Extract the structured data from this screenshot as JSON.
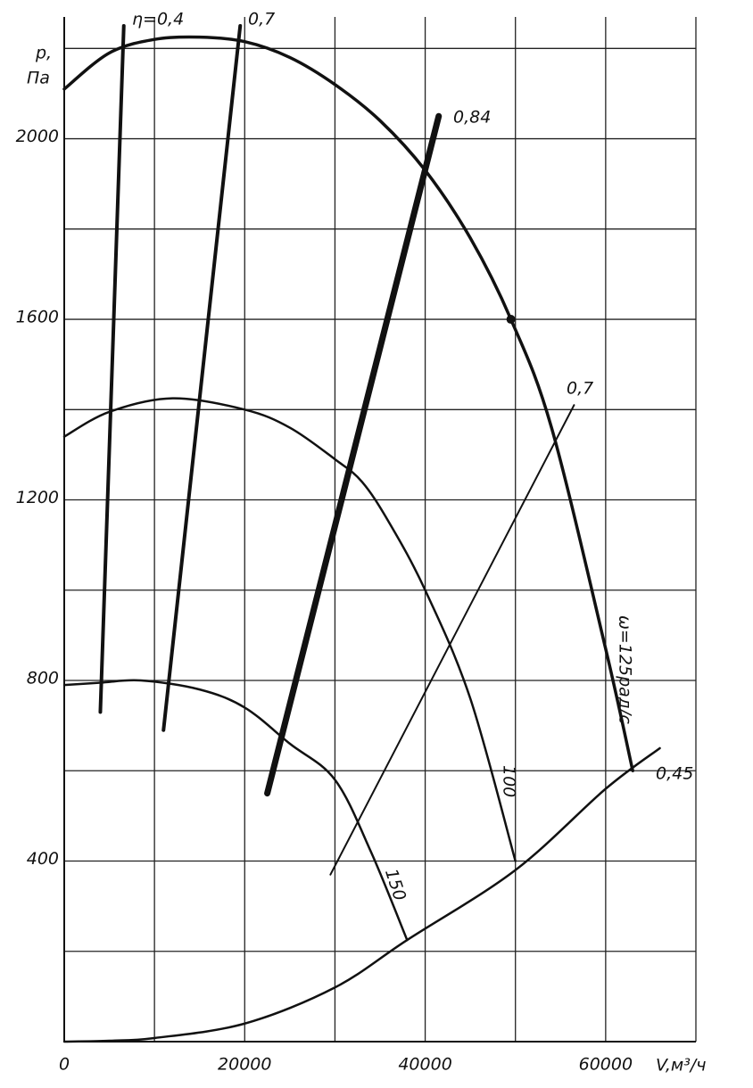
{
  "chart_data": {
    "type": "line",
    "y_label": [
      "p,",
      "Па"
    ],
    "x_label": "V,м³/ч",
    "xlim": [
      0,
      70000
    ],
    "ylim": [
      0,
      2250
    ],
    "xticks": [
      0,
      20000,
      40000,
      60000
    ],
    "minor_xticks": [
      10000,
      30000,
      50000,
      70000
    ],
    "yticks": [
      400,
      800,
      1200,
      1600,
      2000
    ],
    "minor_yticks": [
      200,
      600,
      1000,
      1400,
      1800,
      2200
    ],
    "grid": true,
    "series": [
      {
        "name": "ω=125рад/с",
        "color": "#111",
        "x": [
          0,
          5000,
          10000,
          15000,
          20000,
          25000,
          30000,
          35000,
          40000,
          45000,
          49500,
          54000,
          60000,
          63000
        ],
        "values": [
          2110,
          2190,
          2220,
          2225,
          2215,
          2180,
          2120,
          2040,
          1930,
          1780,
          1600,
          1360,
          870,
          600
        ]
      },
      {
        "name": "100",
        "color": "#111",
        "x": [
          0,
          5000,
          12000,
          20000,
          25000,
          30000,
          33000,
          36000,
          40000,
          45000,
          50000
        ],
        "values": [
          1340,
          1395,
          1425,
          1400,
          1360,
          1290,
          1240,
          1150,
          1000,
          760,
          400
        ]
      },
      {
        "name": "150",
        "color": "#111",
        "x": [
          0,
          4000,
          8500,
          15000,
          20000,
          25000,
          30000,
          34000,
          38000
        ],
        "values": [
          790,
          795,
          800,
          780,
          740,
          660,
          580,
          420,
          225
        ]
      },
      {
        "color": "#111",
        "x": [
          0,
          5000,
          10000,
          20000,
          30000,
          38000,
          50000,
          60000,
          66000
        ],
        "values": [
          0,
          2,
          8,
          40,
          120,
          225,
          380,
          560,
          650
        ]
      },
      {
        "name": "η=0,4",
        "color": "#111",
        "x": [
          4000,
          6600
        ],
        "values": [
          730,
          2250
        ]
      },
      {
        "name": "0,7",
        "color": "#111",
        "x": [
          11000,
          19500
        ],
        "values": [
          690,
          2250
        ]
      },
      {
        "name": "0,84",
        "color": "#111",
        "x": [
          22500,
          41500
        ],
        "values": [
          550,
          2050
        ]
      },
      {
        "name": "0,7",
        "color": "#111",
        "x": [
          29500,
          56500
        ],
        "values": [
          370,
          1410
        ]
      }
    ],
    "points": [
      {
        "x": 49500,
        "y": 1600
      }
    ],
    "annotations": [
      "0,45"
    ]
  }
}
